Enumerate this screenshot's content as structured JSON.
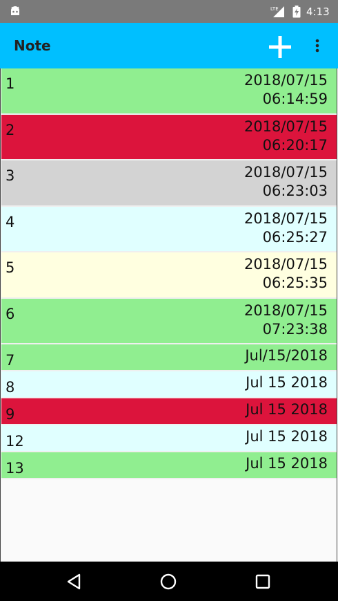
{
  "status_bar": {
    "time": "4:13",
    "network": "LTE"
  },
  "app_bar": {
    "title": "Note",
    "accent_color": "#00bfff"
  },
  "notes": [
    {
      "id": "1",
      "date": "2018/07/15",
      "time": "06:14:59",
      "color": "#90ee90",
      "size": "tall"
    },
    {
      "id": "2",
      "date": "2018/07/15",
      "time": "06:20:17",
      "color": "#dc143c",
      "size": "tall"
    },
    {
      "id": "3",
      "date": "2018/07/15",
      "time": "06:23:03",
      "color": "#d3d3d3",
      "size": "tall"
    },
    {
      "id": "4",
      "date": "2018/07/15",
      "time": "06:25:27",
      "color": "#e0ffff",
      "size": "tall"
    },
    {
      "id": "5",
      "date": "2018/07/15",
      "time": "06:25:35",
      "color": "#ffffe0",
      "size": "tall"
    },
    {
      "id": "6",
      "date": "2018/07/15",
      "time": "07:23:38",
      "color": "#90ee90",
      "size": "tall"
    },
    {
      "id": "7",
      "date": "Jul/15/2018",
      "time": "",
      "color": "#90ee90",
      "size": "short"
    },
    {
      "id": "8",
      "date": "Jul 15 2018",
      "time": "",
      "color": "#e0ffff",
      "size": "short"
    },
    {
      "id": "9",
      "date": "Jul 15 2018",
      "time": "",
      "color": "#dc143c",
      "size": "short"
    },
    {
      "id": "12",
      "date": "Jul 15 2018",
      "time": "",
      "color": "#e0ffff",
      "size": "short"
    },
    {
      "id": "13",
      "date": "Jul 15 2018",
      "time": "",
      "color": "#90ee90",
      "size": "short"
    }
  ],
  "nav_bar": {
    "icons": [
      "back-icon",
      "home-icon",
      "recents-icon"
    ]
  }
}
